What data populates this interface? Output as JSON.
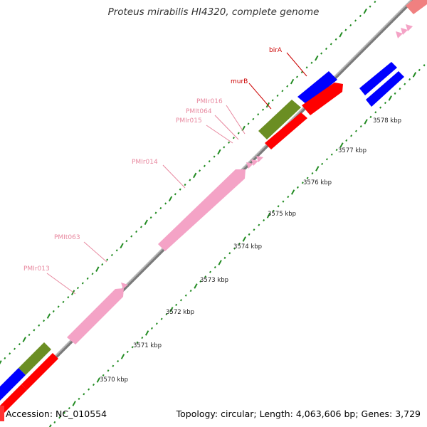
{
  "title": "Proteus mirabilis HI4320, complete genome",
  "accession": "Accession: NC_010554",
  "summary": "Topology: circular; Length: 4,063,606 bp; Genes: 3,729",
  "colors": {
    "backbone": "#8c8c8c",
    "tick": "#228b22",
    "pink": "#f4a3c6",
    "red": "#ff0000",
    "blue": "#0000ff",
    "olive": "#6b8e23",
    "pink_label": "#e8889f",
    "red_label": "#cc0000"
  },
  "kbp_labels": [
    "3570 kbp",
    "3571 kbp",
    "3572 kbp",
    "3573 kbp",
    "3574 kbp",
    "3575 kbp",
    "3576 kbp",
    "3577 kbp",
    "3578 kbp"
  ],
  "gene_labels": [
    "PMIr013",
    "PMIt063",
    "PMIr014",
    "PMIr015",
    "PMIt064",
    "PMIr016",
    "murB",
    "birA"
  ]
}
